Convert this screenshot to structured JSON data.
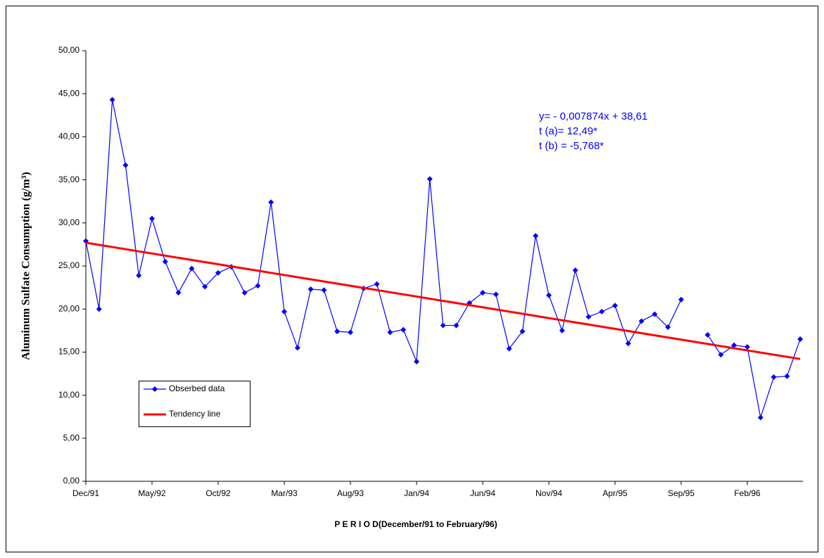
{
  "chart_data": {
    "type": "line",
    "x_label": "P E R I O D(December/91 to February/96)",
    "y_label": "Aluminum Sulfate Consumption (g/m³)",
    "categories": [
      "Dec/91",
      null,
      null,
      null,
      null,
      "May/92",
      null,
      null,
      null,
      null,
      "Oct/92",
      null,
      null,
      null,
      null,
      "Mar/93",
      null,
      null,
      null,
      null,
      "Aug/93",
      null,
      null,
      null,
      null,
      "Jan/94",
      null,
      null,
      null,
      null,
      "Jun/94",
      null,
      null,
      null,
      null,
      "Nov/94",
      null,
      null,
      null,
      null,
      "Apr/95",
      null,
      null,
      null,
      null,
      "Sep/95",
      null,
      null,
      null,
      null,
      "Feb/96",
      null,
      null,
      null,
      null
    ],
    "series": [
      {
        "name": "Obserbed data",
        "color": "#0000ff",
        "values": [
          27.9,
          20.0,
          44.3,
          36.7,
          23.9,
          30.5,
          25.5,
          21.9,
          24.7,
          22.6,
          24.2,
          24.9,
          21.9,
          22.7,
          32.4,
          19.7,
          15.5,
          22.3,
          22.2,
          17.4,
          17.3,
          22.4,
          22.9,
          17.3,
          17.6,
          13.9,
          35.1,
          18.1,
          18.1,
          20.7,
          21.9,
          21.7,
          15.4,
          17.4,
          28.5,
          21.6,
          17.5,
          24.5,
          19.1,
          19.7,
          20.4,
          16.0,
          18.6,
          19.4,
          17.9,
          21.1,
          null,
          17.0,
          14.7,
          15.8,
          15.6,
          7.4,
          12.1,
          12.2,
          16.5
        ]
      }
    ],
    "trend_line": {
      "name": "Tendency line",
      "color": "#ff0000",
      "values": [
        27.7,
        14.2
      ]
    },
    "annotations": [
      "y= - 0,007874x + 38,61",
      "t (a)=  12,49*",
      "t (b) = -5,768*"
    ],
    "ylim": [
      0,
      50
    ],
    "yticks": [
      {
        "value": 0,
        "label": "0,00"
      },
      {
        "value": 5,
        "label": "5,00"
      },
      {
        "value": 10,
        "label": "10,00"
      },
      {
        "value": 15,
        "label": "15,00"
      },
      {
        "value": 20,
        "label": "20,00"
      },
      {
        "value": 25,
        "label": "25,00"
      },
      {
        "value": 30,
        "label": "30,00"
      },
      {
        "value": 35,
        "label": "35,00"
      },
      {
        "value": 40,
        "label": "40,00"
      },
      {
        "value": 45,
        "label": "45,00"
      },
      {
        "value": 50,
        "label": "50,00"
      }
    ],
    "legend_position": "lower left"
  }
}
